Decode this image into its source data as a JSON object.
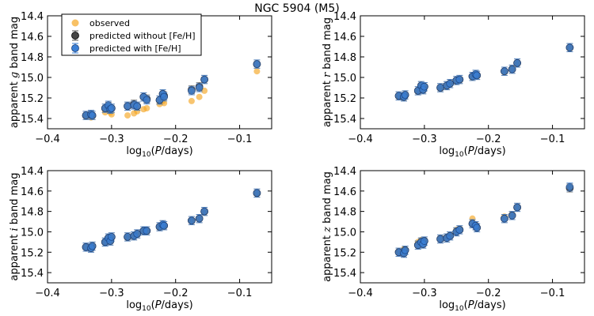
{
  "figure": {
    "suptitle": "NGC 5904 (M5)"
  },
  "legend": {
    "observed": "observed",
    "pred_without": "predicted without [Fe/H]",
    "pred_with": "predicted with [Fe/H]"
  },
  "colors": {
    "observed": "#f5a623",
    "pred_without": "#555555",
    "pred_with": "#3a7fd5"
  },
  "chart_data": [
    {
      "type": "scatter",
      "band": "g",
      "ylabel": "apparent g band mag",
      "xlabel": "log10(P/days)",
      "xlim": [
        -0.4,
        -0.05
      ],
      "ylim": [
        15.5,
        14.4
      ],
      "xticks": [
        -0.4,
        -0.3,
        -0.2,
        -0.1
      ],
      "yticks": [
        14.4,
        14.6,
        14.8,
        15.0,
        15.2,
        15.4
      ],
      "x": [
        -0.34,
        -0.332,
        -0.33,
        -0.31,
        -0.305,
        -0.302,
        -0.3,
        -0.275,
        -0.265,
        -0.26,
        -0.25,
        -0.245,
        -0.225,
        -0.22,
        -0.218,
        -0.175,
        -0.163,
        -0.155,
        -0.073
      ],
      "observed": [
        15.38,
        15.39,
        15.38,
        15.34,
        15.32,
        15.34,
        15.36,
        15.37,
        15.35,
        15.33,
        15.31,
        15.3,
        15.26,
        15.23,
        15.25,
        15.23,
        15.19,
        15.13,
        14.94
      ],
      "pred_without": [
        15.37,
        15.36,
        15.37,
        15.3,
        15.28,
        15.31,
        15.3,
        15.28,
        15.26,
        15.28,
        15.19,
        15.21,
        15.22,
        15.16,
        15.18,
        15.12,
        15.09,
        15.02,
        14.87
      ],
      "pred_with": [
        15.37,
        15.36,
        15.37,
        15.3,
        15.27,
        15.31,
        15.3,
        15.28,
        15.27,
        15.28,
        15.19,
        15.22,
        15.22,
        15.16,
        15.19,
        15.13,
        15.1,
        15.02,
        14.87
      ]
    },
    {
      "type": "scatter",
      "band": "r",
      "ylabel": "apparent r band mag",
      "xlabel": "log10(P/days)",
      "xlim": [
        -0.4,
        -0.05
      ],
      "ylim": [
        15.5,
        14.4
      ],
      "xticks": [
        -0.4,
        -0.3,
        -0.2,
        -0.1
      ],
      "yticks": [
        14.4,
        14.6,
        14.8,
        15.0,
        15.2,
        15.4
      ],
      "x": [
        -0.34,
        -0.332,
        -0.33,
        -0.31,
        -0.305,
        -0.302,
        -0.3,
        -0.275,
        -0.265,
        -0.26,
        -0.25,
        -0.245,
        -0.225,
        -0.22,
        -0.218,
        -0.175,
        -0.163,
        -0.155,
        -0.073
      ],
      "observed": [
        15.19,
        15.2,
        15.18,
        15.14,
        15.1,
        15.12,
        15.1,
        15.11,
        15.09,
        15.07,
        15.04,
        15.03,
        15.0,
        14.97,
        14.99,
        14.95,
        14.91,
        14.87,
        14.72
      ],
      "pred_without": [
        15.18,
        15.19,
        15.17,
        15.13,
        15.08,
        15.12,
        15.09,
        15.1,
        15.08,
        15.06,
        15.03,
        15.02,
        14.99,
        14.97,
        14.98,
        14.94,
        14.92,
        14.86,
        14.71
      ],
      "pred_with": [
        15.18,
        15.19,
        15.17,
        15.13,
        15.08,
        15.12,
        15.09,
        15.1,
        15.08,
        15.06,
        15.03,
        15.02,
        14.99,
        14.97,
        14.98,
        14.94,
        14.92,
        14.86,
        14.71
      ]
    },
    {
      "type": "scatter",
      "band": "i",
      "ylabel": "apparent i band mag",
      "xlabel": "log10(P/days)",
      "xlim": [
        -0.4,
        -0.05
      ],
      "ylim": [
        15.5,
        14.4
      ],
      "xticks": [
        -0.4,
        -0.3,
        -0.2,
        -0.1
      ],
      "yticks": [
        14.4,
        14.6,
        14.8,
        15.0,
        15.2,
        15.4
      ],
      "x": [
        -0.34,
        -0.332,
        -0.33,
        -0.31,
        -0.305,
        -0.302,
        -0.3,
        -0.275,
        -0.265,
        -0.26,
        -0.25,
        -0.245,
        -0.225,
        -0.22,
        -0.218,
        -0.175,
        -0.163,
        -0.155,
        -0.073
      ],
      "observed": [
        15.15,
        15.16,
        15.14,
        15.1,
        15.07,
        15.09,
        15.06,
        15.06,
        15.04,
        15.02,
        14.99,
        15.0,
        14.96,
        14.93,
        14.95,
        14.89,
        14.87,
        14.81,
        14.63
      ],
      "pred_without": [
        15.15,
        15.16,
        15.14,
        15.1,
        15.06,
        15.09,
        15.05,
        15.05,
        15.04,
        15.02,
        14.99,
        14.99,
        14.95,
        14.93,
        14.94,
        14.89,
        14.87,
        14.8,
        14.62
      ],
      "pred_with": [
        15.15,
        15.16,
        15.14,
        15.1,
        15.06,
        15.09,
        15.05,
        15.05,
        15.04,
        15.02,
        14.99,
        14.99,
        14.95,
        14.93,
        14.94,
        14.89,
        14.87,
        14.8,
        14.62
      ]
    },
    {
      "type": "scatter",
      "band": "z",
      "ylabel": "apparent z band mag",
      "xlabel": "log10(P/days)",
      "xlim": [
        -0.4,
        -0.05
      ],
      "ylim": [
        15.5,
        14.4
      ],
      "xticks": [
        -0.4,
        -0.3,
        -0.2,
        -0.1
      ],
      "yticks": [
        14.4,
        14.6,
        14.8,
        15.0,
        15.2,
        15.4
      ],
      "x": [
        -0.34,
        -0.332,
        -0.33,
        -0.31,
        -0.305,
        -0.302,
        -0.3,
        -0.275,
        -0.265,
        -0.26,
        -0.25,
        -0.245,
        -0.225,
        -0.22,
        -0.218,
        -0.175,
        -0.163,
        -0.155,
        -0.073
      ],
      "observed": [
        15.19,
        15.17,
        15.17,
        15.1,
        15.08,
        15.09,
        15.08,
        15.06,
        15.05,
        15.03,
        14.98,
        14.97,
        14.87,
        14.93,
        14.95,
        14.85,
        14.83,
        14.76,
        14.57
      ],
      "pred_without": [
        15.2,
        15.21,
        15.18,
        15.13,
        15.1,
        15.12,
        15.09,
        15.07,
        15.06,
        15.04,
        15.0,
        14.98,
        14.92,
        14.94,
        14.96,
        14.87,
        14.84,
        14.76,
        14.57
      ],
      "pred_with": [
        15.2,
        15.21,
        15.18,
        15.13,
        15.1,
        15.12,
        15.09,
        15.07,
        15.06,
        15.04,
        15.0,
        14.98,
        14.92,
        14.94,
        14.96,
        14.87,
        14.84,
        14.76,
        14.56
      ]
    }
  ]
}
